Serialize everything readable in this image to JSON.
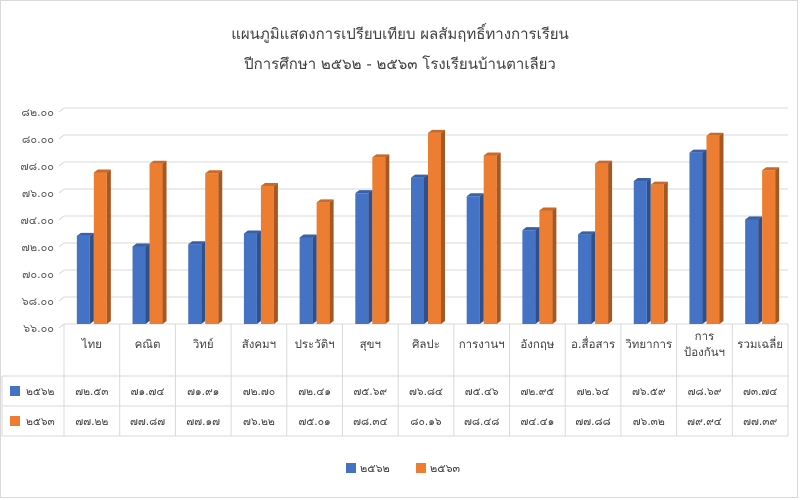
{
  "chart_data": {
    "type": "bar",
    "title": "แผนภูมิแสดงการเปรียบเทียบ ผลสัมฤทธิ์ทางการเรียน",
    "subtitle": "ปีการศึกษา ๒๕๖๒ - ๒๕๖๓ โรงเรียนบ้านตาเลียว",
    "categories": [
      "ไทย",
      "คณิต",
      "วิทย์",
      "สังคมฯ",
      "ประวัติฯ",
      "สุขฯ",
      "ศิลปะ",
      "การงานฯ",
      "อังกฤษ",
      "อ.สื่อสาร",
      "วิทยาการ",
      "การ\nป้องกันฯ",
      "รวมเฉลี่ย"
    ],
    "series": [
      {
        "name": "๒๕๖๒",
        "color": "#4472c4",
        "values": [
          72.53,
          71.74,
          71.91,
          72.7,
          72.41,
          75.69,
          76.84,
          75.46,
          72.95,
          72.64,
          76.59,
          78.69,
          73.74
        ],
        "labels": [
          "๗๒.๕๓",
          "๗๑.๗๔",
          "๗๑.๙๑",
          "๗๒.๗๐",
          "๗๒.๔๑",
          "๗๕.๖๙",
          "๗๖.๘๔",
          "๗๕.๔๖",
          "๗๒.๙๕",
          "๗๒.๖๔",
          "๗๖.๕๙",
          "๗๘.๖๙",
          "๗๓.๗๔"
        ]
      },
      {
        "name": "๒๕๖๓",
        "color": "#ed7d31",
        "values": [
          77.22,
          77.87,
          77.17,
          76.22,
          75.01,
          78.34,
          80.16,
          78.48,
          74.41,
          77.88,
          76.32,
          79.94,
          77.39
        ],
        "labels": [
          "๗๗.๒๒",
          "๗๗.๘๗",
          "๗๗.๑๗",
          "๗๖.๒๒",
          "๗๕.๐๑",
          "๗๘.๓๔",
          "๘๐.๑๖",
          "๗๘.๔๘",
          "๗๔.๔๑",
          "๗๗.๘๘",
          "๗๖.๓๒",
          "๗๙.๙๔",
          "๗๗.๓๙"
        ]
      }
    ],
    "ylim": [
      66,
      82
    ],
    "yticks": [
      66,
      68,
      70,
      72,
      74,
      76,
      78,
      80,
      82
    ],
    "ytick_labels": [
      "๖๖.๐๐",
      "๖๘.๐๐",
      "๗๐.๐๐",
      "๗๒.๐๐",
      "๗๔.๐๐",
      "๗๖.๐๐",
      "๗๘.๐๐",
      "๘๐.๐๐",
      "๘๒.๐๐"
    ],
    "grid": true,
    "legend_position": "bottom",
    "data_table": true
  }
}
